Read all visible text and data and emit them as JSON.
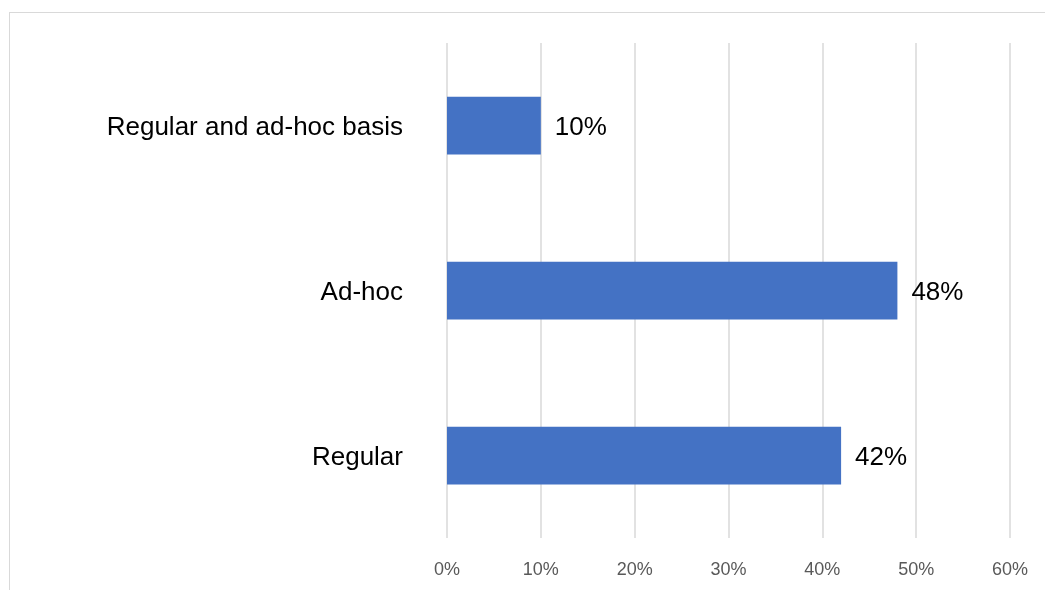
{
  "chart_data": {
    "type": "bar",
    "orientation": "horizontal",
    "categories": [
      "Regular and ad-hoc basis",
      "Ad-hoc",
      "Regular"
    ],
    "values": [
      10,
      48,
      42
    ],
    "color": "#4472c4",
    "value_labels": [
      "10%",
      "48%",
      "42%"
    ],
    "xlim": [
      0,
      60
    ],
    "xticks": [
      {
        "value": 0,
        "label": "0%"
      },
      {
        "value": 10,
        "label": "10%"
      },
      {
        "value": 20,
        "label": "20%"
      },
      {
        "value": 30,
        "label": "30%"
      },
      {
        "value": 40,
        "label": "40%"
      },
      {
        "value": 50,
        "label": "50%"
      },
      {
        "value": 60,
        "label": "60%"
      }
    ],
    "grid": "x"
  }
}
